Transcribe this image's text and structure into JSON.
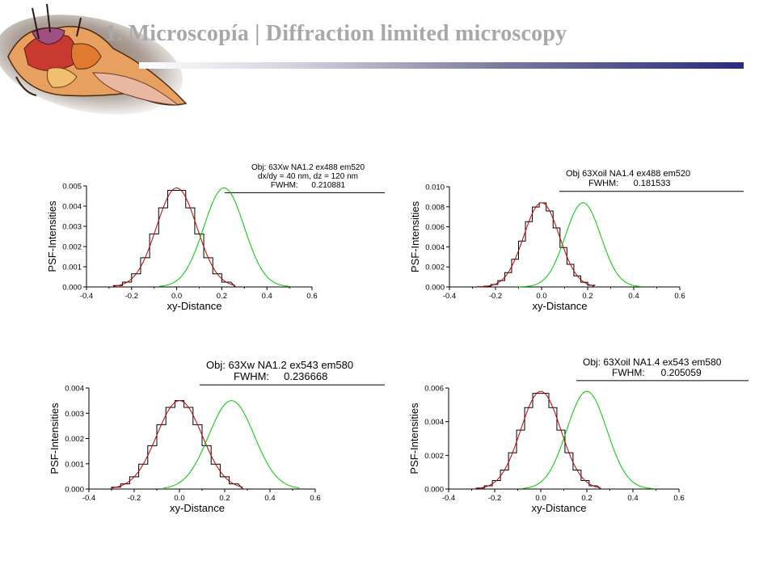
{
  "header": {
    "title": "1.  Microscopía |  Diffraction limited microscopy",
    "accent_color": "#2a2a82",
    "title_color": "#a8a8a8"
  },
  "logo": {
    "icon": "anatomical-dissection-logo"
  },
  "colors": {
    "histogram": "#000000",
    "fit": "#c00000",
    "shifted_fit": "#00c800"
  },
  "chart_data": [
    {
      "type": "line",
      "xlabel": "xy-Distance",
      "ylabel": "PSF-Intensities",
      "xlim": [
        -0.4,
        0.6
      ],
      "ylim": [
        0,
        0.005
      ],
      "xticks": [
        "-0.4",
        "-0.2",
        "0.0",
        "0.2",
        "0.4",
        "0.6"
      ],
      "yticks": [
        "0.000",
        "0.001",
        "0.002",
        "0.003",
        "0.004",
        "0.005"
      ],
      "annotation": [
        "Obj: 63Xw NA1.2 ex488 em520",
        "dx/dy = 40 nm, dz = 120 nm",
        "FWHM:      0.210881"
      ],
      "fwhm": 0.210881,
      "peak": 0.0049,
      "x_step": 0.04,
      "series": [
        {
          "center": 0.0,
          "x_range": [
            -0.28,
            0.26
          ]
        },
        {
          "center": 0.0,
          "x_range": [
            -0.28,
            0.26
          ]
        },
        {
          "center": 0.21,
          "x_range": [
            -0.08,
            0.5
          ]
        }
      ]
    },
    {
      "type": "line",
      "xlabel": "xy-Distance",
      "ylabel": "PSF-Intensities",
      "xlim": [
        -0.4,
        0.6
      ],
      "ylim": [
        0,
        0.01
      ],
      "xticks": [
        "-0.4",
        "-0.2",
        "0.0",
        "0.2",
        "0.4",
        "0.6"
      ],
      "yticks": [
        "0.000",
        "0.002",
        "0.004",
        "0.006",
        "0.008",
        "0.010"
      ],
      "annotation": [
        "Obj 63Xoil NA1.4 ex488 em520",
        "FWHM:      0.181533"
      ],
      "fwhm": 0.181533,
      "peak": 0.0084,
      "x_step": 0.03,
      "series": [
        {
          "center": 0.0,
          "x_range": [
            -0.28,
            0.22
          ]
        },
        {
          "center": 0.0,
          "x_range": [
            -0.28,
            0.22
          ]
        },
        {
          "center": 0.18,
          "x_range": [
            -0.1,
            0.44
          ]
        }
      ]
    },
    {
      "type": "line",
      "xlabel": "xy-Distance",
      "ylabel": "PSF-Intensities",
      "xlim": [
        -0.4,
        0.6
      ],
      "ylim": [
        0,
        0.004
      ],
      "xticks": [
        "-0.4",
        "-0.2",
        "0.0",
        "0.2",
        "0.4",
        "0.6"
      ],
      "yticks": [
        "0.000",
        "0.001",
        "0.002",
        "0.003",
        "0.004"
      ],
      "annotation": [
        "Obj: 63Xw NA1.2 ex543 em580",
        "FWHM:     0.236668"
      ],
      "fwhm": 0.236668,
      "peak": 0.0035,
      "x_step": 0.04,
      "series": [
        {
          "center": 0.0,
          "x_range": [
            -0.3,
            0.28
          ]
        },
        {
          "center": 0.0,
          "x_range": [
            -0.3,
            0.28
          ]
        },
        {
          "center": 0.23,
          "x_range": [
            -0.07,
            0.53
          ]
        }
      ]
    },
    {
      "type": "line",
      "xlabel": "xy-Distance",
      "ylabel": "PSF-Intensities",
      "xlim": [
        -0.4,
        0.6
      ],
      "ylim": [
        0,
        0.006
      ],
      "xticks": [
        "-0.4",
        "-0.2",
        "0.0",
        "0.2",
        "0.4",
        "0.6"
      ],
      "yticks": [
        "0.000",
        "0.002",
        "0.004",
        "0.006"
      ],
      "annotation": [
        "Obj: 63Xoil NA1.4 ex543 em580",
        "FWHM:      0.205059"
      ],
      "fwhm": 0.205059,
      "peak": 0.0058,
      "x_step": 0.035,
      "series": [
        {
          "center": 0.0,
          "x_range": [
            -0.28,
            0.26
          ]
        },
        {
          "center": 0.0,
          "x_range": [
            -0.28,
            0.26
          ]
        },
        {
          "center": 0.2,
          "x_range": [
            -0.08,
            0.5
          ]
        }
      ]
    }
  ]
}
